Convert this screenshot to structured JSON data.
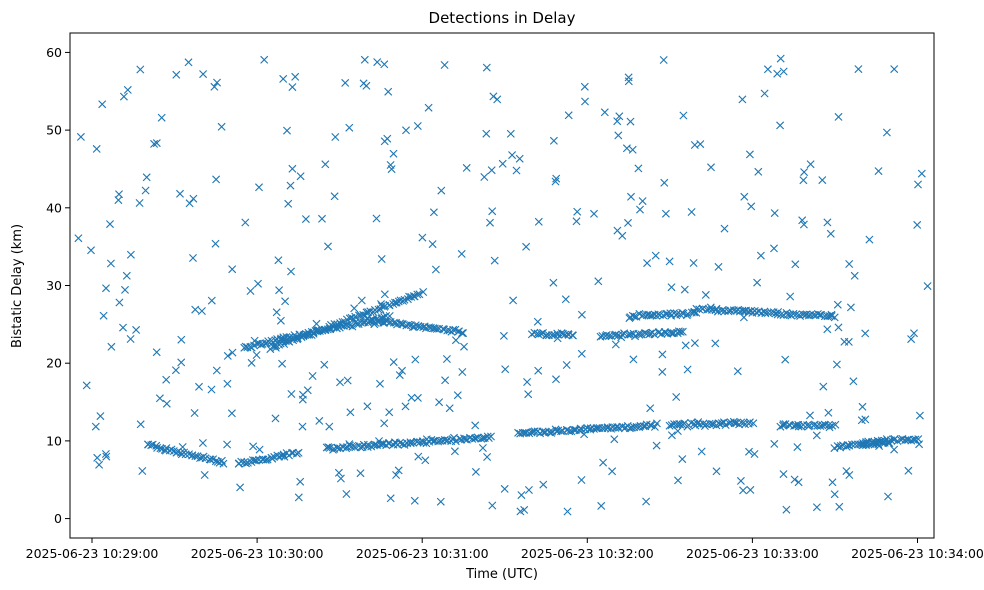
{
  "chart_data": {
    "type": "scatter",
    "title": "Detections in Delay",
    "xlabel": "Time (UTC)",
    "ylabel": "Bistatic Delay (km)",
    "x_ticks": [
      "2025-06-23 10:29:00",
      "2025-06-23 10:30:00",
      "2025-06-23 10:31:00",
      "2025-06-23 10:32:00",
      "2025-06-23 10:33:00",
      "2025-06-23 10:34:00"
    ],
    "x_range": [
      "2025-06-23 10:28:52",
      "2025-06-23 10:34:06"
    ],
    "y_ticks": [
      0,
      10,
      20,
      30,
      40,
      50,
      60
    ],
    "ylim": [
      -2.5,
      62.5
    ],
    "marker": "x",
    "marker_color": "#1f77b4",
    "grid": false,
    "legend": "none",
    "tracks": [
      {
        "t_start": "2025-06-23 10:29:55",
        "t_end": "2025-06-23 10:30:48",
        "delay_start": 22.0,
        "delay_end": 26.0
      },
      {
        "t_start": "2025-06-23 10:30:05",
        "t_end": "2025-06-23 10:31:00",
        "delay_start": 22.0,
        "delay_end": 29.0
      },
      {
        "t_start": "2025-06-23 10:30:40",
        "t_end": "2025-06-23 10:31:15",
        "delay_start": 25.5,
        "delay_end": 24.0
      },
      {
        "t_start": "2025-06-23 10:31:40",
        "t_end": "2025-06-23 10:31:55",
        "delay_start": 23.8,
        "delay_end": 23.6
      },
      {
        "t_start": "2025-06-23 10:32:05",
        "t_end": "2025-06-23 10:32:35",
        "delay_start": 23.5,
        "delay_end": 24.0
      },
      {
        "t_start": "2025-06-23 10:32:15",
        "t_end": "2025-06-23 10:32:40",
        "delay_start": 26.0,
        "delay_end": 26.5
      },
      {
        "t_start": "2025-06-23 10:32:40",
        "t_end": "2025-06-23 10:33:30",
        "delay_start": 27.0,
        "delay_end": 26.0
      },
      {
        "t_start": "2025-06-23 10:29:20",
        "t_end": "2025-06-23 10:29:48",
        "delay_start": 9.5,
        "delay_end": 7.2
      },
      {
        "t_start": "2025-06-23 10:29:53",
        "t_end": "2025-06-23 10:30:15",
        "delay_start": 7.0,
        "delay_end": 8.5
      },
      {
        "t_start": "2025-06-23 10:30:25",
        "t_end": "2025-06-23 10:31:25",
        "delay_start": 9.0,
        "delay_end": 10.5
      },
      {
        "t_start": "2025-06-23 10:31:35",
        "t_end": "2025-06-23 10:32:25",
        "delay_start": 11.0,
        "delay_end": 12.0
      },
      {
        "t_start": "2025-06-23 10:32:30",
        "t_end": "2025-06-23 10:33:00",
        "delay_start": 12.0,
        "delay_end": 12.3
      },
      {
        "t_start": "2025-06-23 10:33:10",
        "t_end": "2025-06-23 10:33:30",
        "delay_start": 12.0,
        "delay_end": 12.0
      },
      {
        "t_start": "2025-06-23 10:33:30",
        "t_end": "2025-06-23 10:33:50",
        "delay_start": 9.3,
        "delay_end": 9.8
      },
      {
        "t_start": "2025-06-23 10:33:40",
        "t_end": "2025-06-23 10:34:00",
        "delay_start": 9.8,
        "delay_end": 10.2
      }
    ],
    "noise_count": 380
  }
}
